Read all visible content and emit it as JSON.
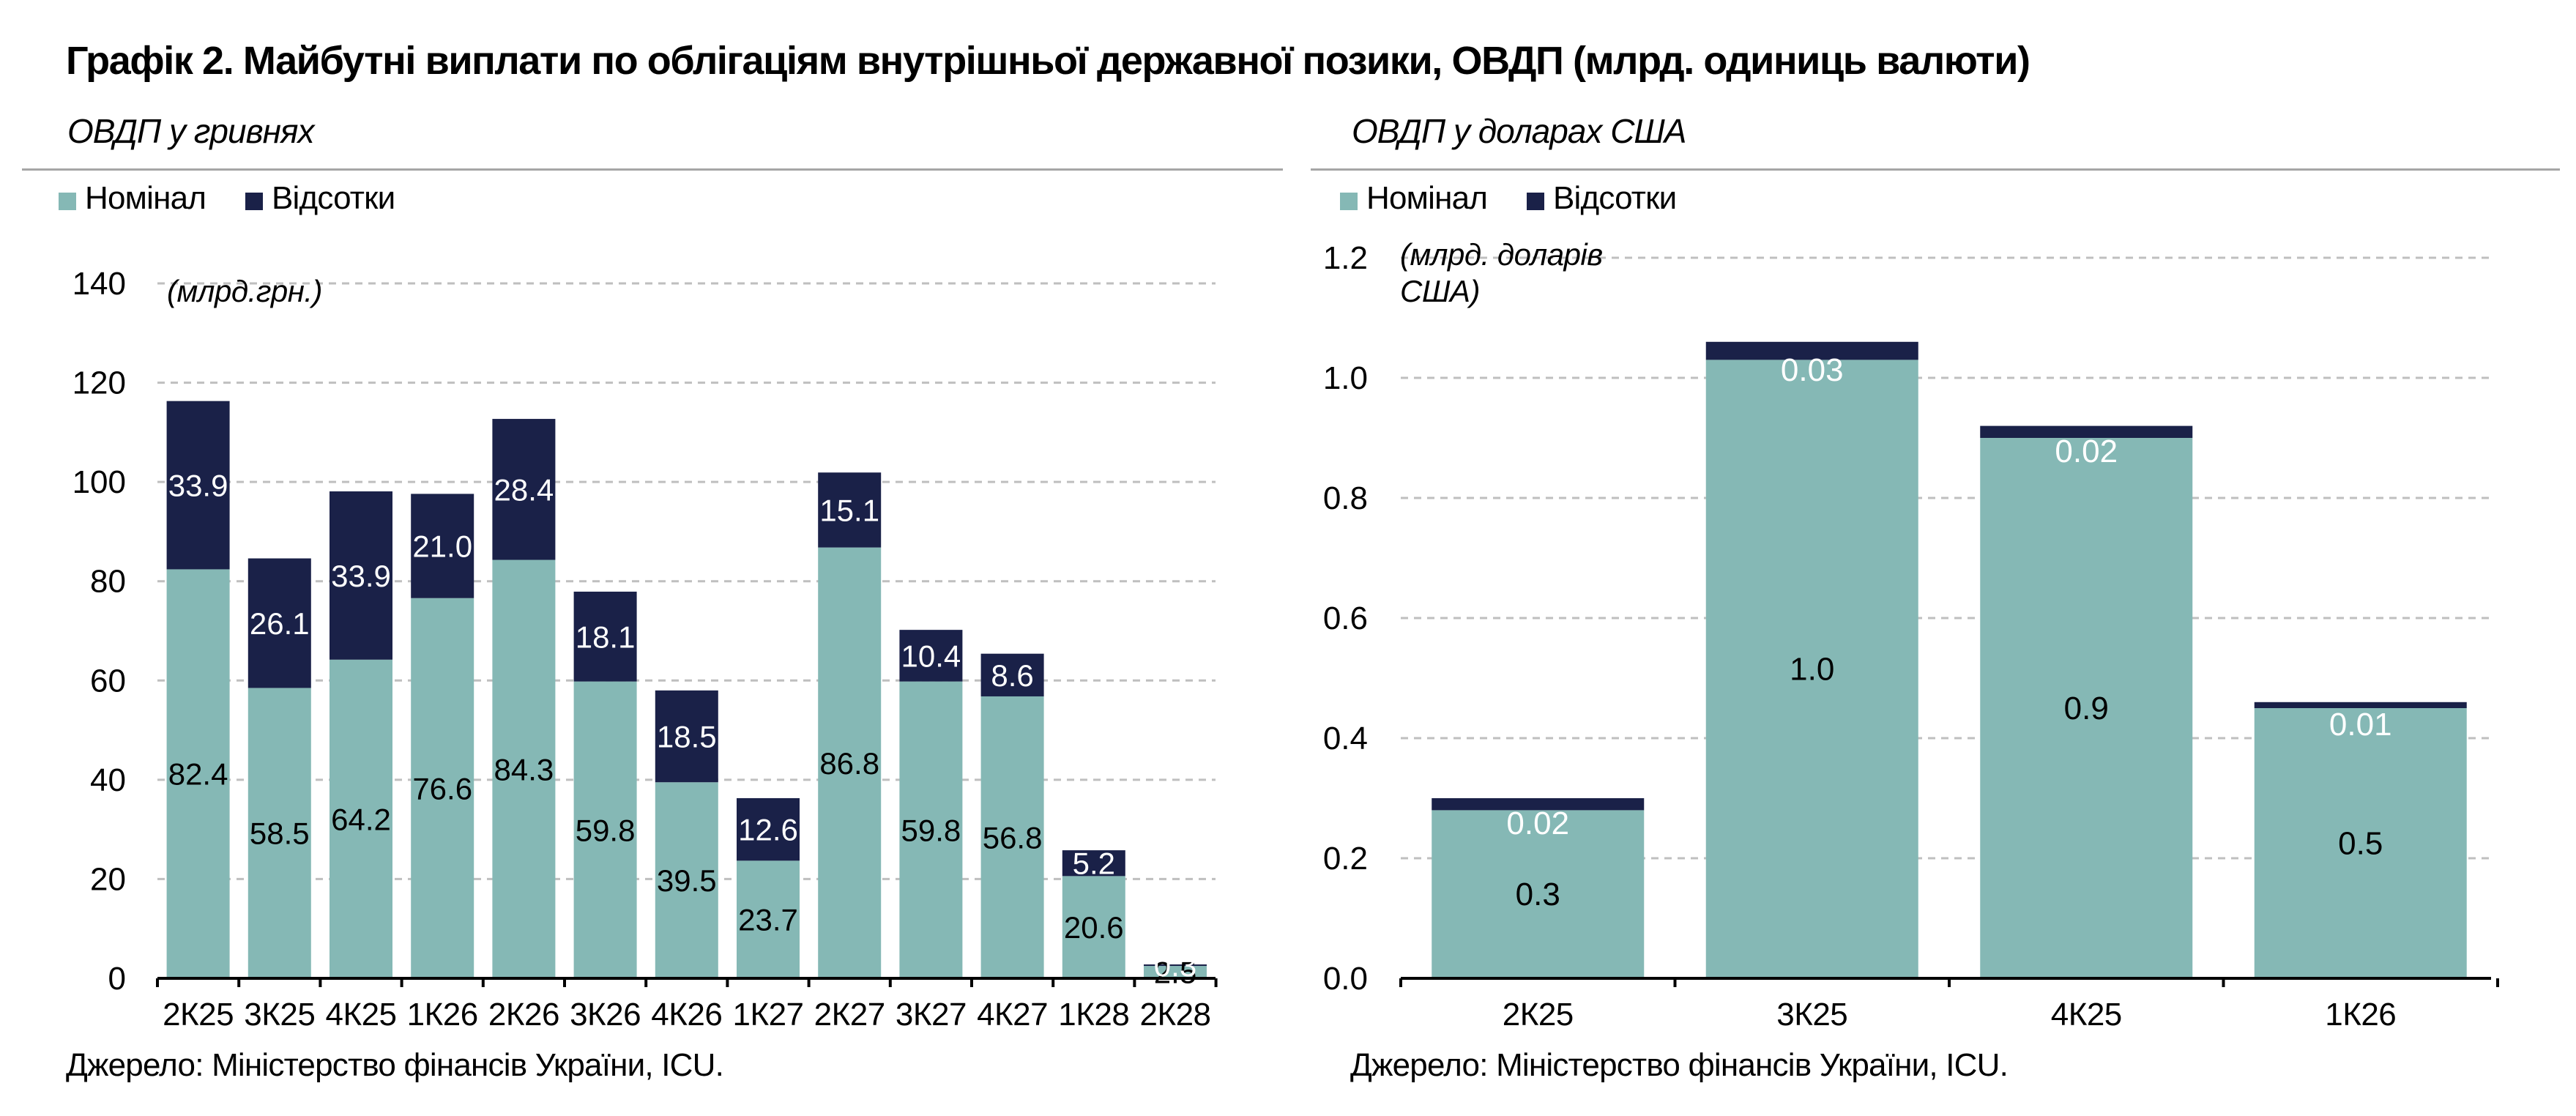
{
  "title": "Графік 2. Майбутні виплати по облігаціям внутрішньої державної позики, ОВДП (млрд. одиниць валюти)",
  "source": "Джерело: Міністерство фінансів України, ICU.",
  "colors": {
    "nominal": "#85b8b5",
    "interest": "#1a2148",
    "grid": "#bfbfbf",
    "rule": "#a6a6a6"
  },
  "chart_data": [
    {
      "id": "uah",
      "type": "bar",
      "stacked": true,
      "subtitle": "ОВДП у гривнях",
      "unit_label": "(млрд.грн.)",
      "legend": [
        "Номінал",
        "Відсотки"
      ],
      "legend_position": "top-left",
      "grid": true,
      "categories": [
        "2К25",
        "3К25",
        "4К25",
        "1К26",
        "2К26",
        "3К26",
        "4К26",
        "1К27",
        "2К27",
        "3К27",
        "4К27",
        "1К28",
        "2К28"
      ],
      "series": [
        {
          "name": "Номінал",
          "values": [
            82.4,
            58.5,
            64.2,
            76.6,
            84.3,
            59.8,
            39.5,
            23.7,
            86.8,
            59.8,
            56.8,
            20.6,
            2.5
          ],
          "labels": [
            "82.4",
            "58.5",
            "64.2",
            "76.6",
            "84.3",
            "59.8",
            "39.5",
            "23.7",
            "86.8",
            "59.8",
            "56.8",
            "20.6",
            "2.5"
          ]
        },
        {
          "name": "Відсотки",
          "values": [
            33.9,
            26.1,
            33.9,
            21.0,
            28.4,
            18.1,
            18.5,
            12.6,
            15.1,
            10.4,
            8.6,
            5.2,
            0.3
          ],
          "labels": [
            "33.9",
            "26.1",
            "33.9",
            "21.0",
            "28.4",
            "18.1",
            "18.5",
            "12.6",
            "15.1",
            "10.4",
            "8.6",
            "5.2",
            "0.3"
          ]
        }
      ],
      "ylim": [
        0,
        140
      ],
      "yticks": [
        "0",
        "20",
        "40",
        "60",
        "80",
        "100",
        "120",
        "140"
      ]
    },
    {
      "id": "usd",
      "type": "bar",
      "stacked": true,
      "subtitle": "ОВДП у доларах США",
      "unit_label": [
        "(млрд. доларів",
        "США)"
      ],
      "legend": [
        "Номінал",
        "Відсотки"
      ],
      "legend_position": "top-left",
      "grid": true,
      "categories": [
        "2К25",
        "3К25",
        "4К25",
        "1К26"
      ],
      "series": [
        {
          "name": "Номінал",
          "values": [
            0.28,
            1.03,
            0.9,
            0.45
          ],
          "labels": [
            "0.3",
            "1.0",
            "0.9",
            "0.5"
          ]
        },
        {
          "name": "Відсотки",
          "values": [
            0.02,
            0.03,
            0.02,
            0.01
          ],
          "labels": [
            "0.02",
            "0.03",
            "0.02",
            "0.01"
          ]
        }
      ],
      "ylim": [
        0,
        1.2
      ],
      "yticks": [
        "0.0",
        "0.2",
        "0.4",
        "0.6",
        "0.8",
        "1.0",
        "1.2"
      ]
    }
  ]
}
